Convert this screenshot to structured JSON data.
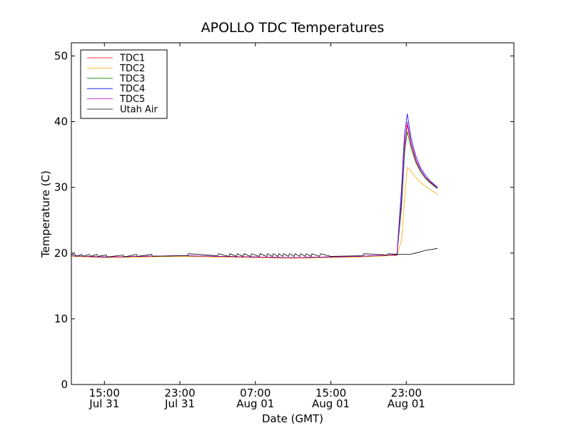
{
  "chart_data": {
    "type": "line",
    "title": "APOLLO TDC Temperatures",
    "xlabel": "Date (GMT)",
    "ylabel": "Temperature (C)",
    "ylim": [
      0,
      52
    ],
    "xlim": [
      11.5,
      58.4
    ],
    "yticks": [
      0,
      10,
      20,
      30,
      40,
      50
    ],
    "xticks": [
      {
        "x": 15,
        "line1": "15:00",
        "line2": "Jul 31"
      },
      {
        "x": 23,
        "line1": "23:00",
        "line2": "Jul 31"
      },
      {
        "x": 31,
        "line1": "07:00",
        "line2": "Aug 01"
      },
      {
        "x": 39,
        "line1": "15:00",
        "line2": "Aug 01"
      },
      {
        "x": 47,
        "line1": "23:00",
        "line2": "Aug 01"
      }
    ],
    "legend": {
      "position": "upper-left"
    },
    "series": [
      {
        "name": "TDC1",
        "color": "#ff0000",
        "x": [
          11.5,
          15,
          19,
          23,
          27,
          31,
          35,
          38.5,
          42,
          45.3,
          46.0,
          46.5,
          46.8,
          47.1,
          47.5,
          48.0,
          48.5,
          49.0,
          49.5,
          50.0,
          50.3
        ],
        "y": [
          19.6,
          19.4,
          19.5,
          19.6,
          19.5,
          19.4,
          19.3,
          19.4,
          19.5,
          19.7,
          19.7,
          28.0,
          36.0,
          39.5,
          36.5,
          34.0,
          32.5,
          31.5,
          30.8,
          30.2,
          29.9
        ]
      },
      {
        "name": "TDC2",
        "color": "#ffa500",
        "x": [
          11.5,
          15,
          19,
          23,
          27,
          31,
          35,
          38.5,
          42,
          45.3,
          46.0,
          46.5,
          46.8,
          47.1,
          47.5,
          48.0,
          48.5,
          49.0,
          49.5,
          50.0,
          50.3
        ],
        "y": [
          19.5,
          19.3,
          19.4,
          19.5,
          19.4,
          19.3,
          19.2,
          19.3,
          19.4,
          19.6,
          19.6,
          22.0,
          28.0,
          33.0,
          32.5,
          31.5,
          30.8,
          30.2,
          29.7,
          29.2,
          28.9
        ]
      },
      {
        "name": "TDC3",
        "color": "#008000",
        "x": [
          11.5,
          15,
          19,
          23,
          27,
          31,
          35,
          38.5,
          42,
          45.3,
          46.0,
          46.5,
          46.8,
          47.1,
          47.5,
          48.0,
          48.5,
          49.0,
          49.5,
          50.0,
          50.3
        ],
        "y": [
          19.6,
          19.4,
          19.5,
          19.6,
          19.5,
          19.4,
          19.3,
          19.4,
          19.5,
          19.7,
          19.7,
          27.0,
          35.0,
          38.5,
          36.0,
          33.8,
          32.4,
          31.4,
          30.7,
          30.1,
          29.8
        ]
      },
      {
        "name": "TDC4",
        "color": "#0000ff",
        "x": [
          11.5,
          15,
          19,
          23,
          27,
          31,
          35,
          38.5,
          42,
          45.3,
          46.0,
          46.5,
          46.8,
          47.1,
          47.5,
          48.0,
          48.5,
          49.0,
          49.5,
          50.0,
          50.3
        ],
        "y": [
          19.6,
          19.4,
          19.5,
          19.6,
          19.5,
          19.4,
          19.3,
          19.4,
          19.5,
          19.7,
          19.8,
          30.0,
          38.0,
          41.2,
          37.5,
          34.8,
          33.0,
          31.9,
          31.0,
          30.4,
          30.0
        ]
      },
      {
        "name": "TDC5",
        "color": "#bf00bf",
        "x": [
          11.5,
          15,
          19,
          23,
          27,
          31,
          35,
          38.5,
          42,
          45.3,
          46.0,
          46.5,
          46.8,
          47.1,
          47.5,
          48.0,
          48.5,
          49.0,
          49.5,
          50.0,
          50.3
        ],
        "y": [
          19.6,
          19.4,
          19.5,
          19.6,
          19.5,
          19.4,
          19.3,
          19.4,
          19.5,
          19.7,
          19.7,
          28.5,
          36.5,
          40.0,
          36.8,
          34.3,
          32.7,
          31.6,
          30.9,
          30.3,
          29.9
        ]
      },
      {
        "name": "Utah Air",
        "color": "#000000",
        "x": [
          11.5,
          11.9,
          12.0,
          12.6,
          12.7,
          13.4,
          13.5,
          14.2,
          14.3,
          15.2,
          15.3,
          17.0,
          17.1,
          18.4,
          18.5,
          20.0,
          20.1,
          23.8,
          23.9,
          27.0,
          27.1,
          28.2,
          28.3,
          29.0,
          29.1,
          29.7,
          29.8,
          30.5,
          30.6,
          31.4,
          31.5,
          32.2,
          32.3,
          32.8,
          32.9,
          33.4,
          33.5,
          33.9,
          34.0,
          34.5,
          34.6,
          35.1,
          35.2,
          35.7,
          35.8,
          36.3,
          36.4,
          36.9,
          37.0,
          37.8,
          37.9,
          39.0,
          42.4,
          42.5,
          45.0,
          45.1,
          46.2,
          46.8,
          47.4,
          48.0,
          49.0,
          50.3
        ],
        "y": [
          19.8,
          19.8,
          19.5,
          19.8,
          19.5,
          19.8,
          19.5,
          19.8,
          19.5,
          19.7,
          19.4,
          19.7,
          19.4,
          19.8,
          19.5,
          19.8,
          19.5,
          19.6,
          19.9,
          19.6,
          19.9,
          19.5,
          19.9,
          19.5,
          19.9,
          19.5,
          19.9,
          19.5,
          19.9,
          19.5,
          19.9,
          19.5,
          19.9,
          19.5,
          19.9,
          19.5,
          19.9,
          19.5,
          19.9,
          19.5,
          19.9,
          19.5,
          19.9,
          19.5,
          19.9,
          19.5,
          19.9,
          19.5,
          19.9,
          19.5,
          19.9,
          19.5,
          19.6,
          19.9,
          19.7,
          19.9,
          19.8,
          19.8,
          19.8,
          20.0,
          20.4,
          20.7
        ]
      }
    ]
  }
}
